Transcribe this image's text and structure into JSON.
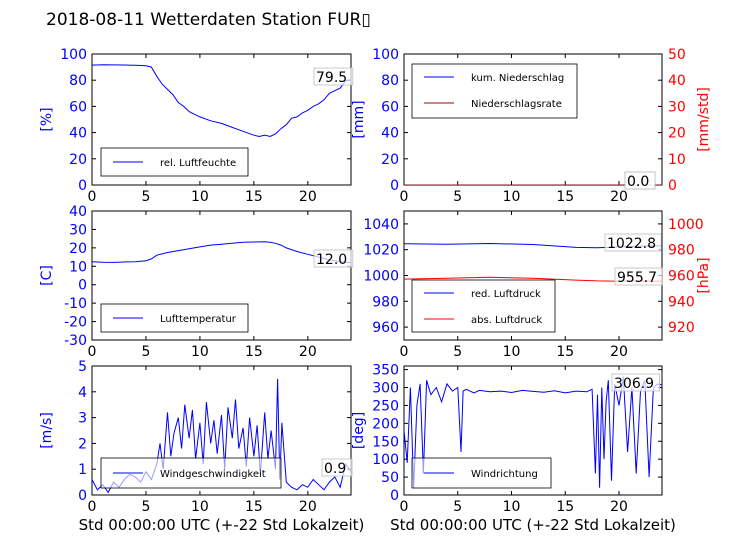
{
  "title": "2018-08-11 Wetterdaten Station FUR▯",
  "colors": {
    "blue": "#0000ff",
    "red": "#ff0000",
    "darkred": "#aa0000",
    "text": "#000000"
  },
  "chart_data": [
    {
      "id": "humidity",
      "type": "line",
      "xlabel": "",
      "ylabel": "[%]",
      "xlim": [
        0,
        24
      ],
      "ylim": [
        0,
        100
      ],
      "xticks": [
        0,
        5,
        10,
        15,
        20
      ],
      "yticks": [
        0,
        20,
        40,
        60,
        80,
        100
      ],
      "legend": {
        "placement": "lower-left",
        "entries": [
          "rel. Luftfeuchte"
        ]
      },
      "annotation": "79.5",
      "series": [
        {
          "name": "rel. Luftfeuchte",
          "color": "blue",
          "x": [
            0,
            1,
            2,
            3,
            4,
            5,
            5.5,
            6,
            6.5,
            7,
            7.5,
            8,
            8.5,
            9,
            9.5,
            10,
            11,
            12,
            13,
            14,
            15,
            15.5,
            16,
            16.5,
            17,
            17.5,
            18,
            18.5,
            19,
            19.5,
            20,
            20.5,
            21,
            21.5,
            22,
            22.5,
            23,
            23.5,
            24
          ],
          "y": [
            91.5,
            91.8,
            91.7,
            91.6,
            91.4,
            91,
            90,
            83,
            77,
            73,
            69,
            63,
            60,
            56,
            54,
            52,
            49,
            47,
            44,
            41,
            38,
            37,
            38,
            37,
            39,
            43,
            46,
            51,
            52,
            55,
            57,
            60,
            62,
            65,
            70,
            72,
            74,
            79.5,
            80
          ]
        }
      ]
    },
    {
      "id": "precipitation",
      "type": "line",
      "xlabel": "",
      "ylabel": "[mm]",
      "y2label": "[mm/std]",
      "xlim": [
        0,
        24
      ],
      "ylim": [
        0,
        100
      ],
      "y2lim": [
        0,
        50
      ],
      "xticks": [
        0,
        5,
        10,
        15,
        20
      ],
      "yticks": [
        0,
        20,
        40,
        60,
        80,
        100
      ],
      "y2ticks": [
        0,
        10,
        20,
        30,
        40,
        50
      ],
      "legend": {
        "placement": "upper-left",
        "entries": [
          "kum. Niederschlag",
          "Niederschlagsrate"
        ]
      },
      "annotations": [
        "0.0",
        "0.0"
      ],
      "series": [
        {
          "name": "kum. Niederschlag",
          "color": "blue",
          "axis": "left",
          "x": [
            0,
            24
          ],
          "y": [
            0,
            0
          ]
        },
        {
          "name": "Niederschlagsrate",
          "color": "darkred",
          "axis": "right",
          "x": [
            0,
            24
          ],
          "y": [
            0,
            0
          ]
        }
      ]
    },
    {
      "id": "temperature",
      "type": "line",
      "xlabel": "",
      "ylabel": "[C]",
      "xlim": [
        0,
        24
      ],
      "ylim": [
        -30,
        40
      ],
      "xticks": [
        0,
        5,
        10,
        15,
        20
      ],
      "yticks": [
        -30,
        -20,
        -10,
        0,
        10,
        20,
        30,
        40
      ],
      "legend": {
        "placement": "lower-left",
        "entries": [
          "Lufttemperatur"
        ]
      },
      "annotation": "12.0",
      "series": [
        {
          "name": "Lufttemperatur",
          "color": "blue",
          "x": [
            0,
            1,
            2,
            3,
            4,
            5,
            5.5,
            6,
            7,
            8,
            9,
            10,
            11,
            12,
            13,
            14,
            15,
            16,
            16.5,
            17,
            17.5,
            18,
            19,
            20,
            21,
            22,
            23,
            24
          ],
          "y": [
            12.5,
            12.2,
            12.1,
            12.3,
            12.5,
            13,
            14,
            16,
            17.5,
            18.5,
            19.5,
            20.5,
            21.5,
            22,
            22.5,
            23,
            23.2,
            23.3,
            23,
            22.5,
            21.5,
            20,
            18,
            16.5,
            15,
            13.5,
            12.5,
            12
          ]
        }
      ]
    },
    {
      "id": "pressure",
      "type": "line",
      "xlabel": "",
      "ylabel": "",
      "y2label": "[hPa]",
      "xlim": [
        0,
        24
      ],
      "ylim": [
        950,
        1050
      ],
      "y2lim": [
        910,
        1010
      ],
      "xticks": [
        0,
        5,
        10,
        15,
        20
      ],
      "yticks": [
        960,
        980,
        1000,
        1020,
        1040
      ],
      "y2ticks": [
        920,
        940,
        960,
        980,
        1000
      ],
      "legend": {
        "placement": "lower-left",
        "entries": [
          "red. Luftdruck",
          "abs. Luftdruck"
        ]
      },
      "annotations": [
        "1022.8",
        "955.7"
      ],
      "series": [
        {
          "name": "red. Luftdruck",
          "color": "blue",
          "axis": "left",
          "x": [
            0,
            4,
            8,
            12,
            16,
            18,
            20,
            22,
            24
          ],
          "y": [
            1024.6,
            1024.2,
            1024.8,
            1024.0,
            1021.8,
            1021.5,
            1022.2,
            1022.8,
            1023.0
          ]
        },
        {
          "name": "abs. Luftdruck",
          "color": "red",
          "axis": "right",
          "x": [
            0,
            4,
            8,
            12,
            16,
            18,
            20,
            22,
            24
          ],
          "y": [
            957.2,
            957.8,
            958.6,
            957.8,
            956.4,
            955.8,
            955.6,
            955.7,
            955.6
          ]
        }
      ]
    },
    {
      "id": "windspeed",
      "type": "line",
      "xlabel": "Std 00:00:00 UTC (+-22 Std Lokalzeit)",
      "ylabel": "[m/s]",
      "xlim": [
        0,
        24
      ],
      "ylim": [
        0,
        5
      ],
      "xticks": [
        0,
        5,
        10,
        15,
        20
      ],
      "yticks": [
        0,
        1,
        2,
        3,
        4,
        5
      ],
      "legend": {
        "placement": "lower-left",
        "entries": [
          "Windgeschwindigkeit"
        ]
      },
      "annotation": "0.9",
      "series": [
        {
          "name": "Windgeschwindigkeit",
          "color": "blue",
          "x": [
            0,
            0.5,
            1,
            1.5,
            2,
            2.5,
            3,
            3.5,
            4,
            4.5,
            5,
            5.5,
            6,
            6.3,
            6.6,
            7,
            7.3,
            7.6,
            8,
            8.3,
            8.6,
            9,
            9.3,
            9.6,
            10,
            10.3,
            10.6,
            11,
            11.3,
            11.6,
            12,
            12.3,
            12.6,
            13,
            13.3,
            13.6,
            14,
            14.3,
            14.6,
            15,
            15.3,
            15.6,
            16,
            16.3,
            16.6,
            17,
            17.2,
            17.4,
            17.6,
            18,
            18.5,
            19,
            19.5,
            20,
            20.5,
            21,
            21.5,
            22,
            22.5,
            23,
            23.5,
            24
          ],
          "y": [
            0.6,
            0.2,
            0.4,
            0.1,
            0.5,
            0.3,
            0.6,
            0.8,
            0.7,
            0.5,
            0.9,
            0.6,
            1.2,
            2.0,
            1.0,
            3.2,
            1.5,
            2.4,
            3.0,
            1.8,
            3.5,
            2.2,
            3.3,
            1.4,
            2.8,
            1.2,
            3.6,
            2.0,
            2.9,
            1.6,
            3.1,
            1.0,
            3.4,
            2.2,
            3.7,
            1.8,
            2.6,
            1.1,
            3.0,
            1.5,
            2.7,
            0.8,
            3.2,
            1.4,
            2.5,
            1.0,
            4.5,
            0.6,
            2.8,
            0.5,
            0.3,
            0.2,
            0.4,
            0.3,
            0.6,
            0.4,
            0.2,
            0.5,
            0.7,
            0.3,
            1.2,
            0.9
          ]
        }
      ]
    },
    {
      "id": "winddirection",
      "type": "line",
      "xlabel": "Std 00:00:00 UTC (+-22 Std Lokalzeit)",
      "ylabel": "[deg]",
      "xlim": [
        0,
        24
      ],
      "ylim": [
        0,
        360
      ],
      "xticks": [
        0,
        5,
        10,
        15,
        20
      ],
      "yticks": [
        0,
        50,
        100,
        150,
        200,
        250,
        300,
        350
      ],
      "legend": {
        "placement": "lower-left",
        "entries": [
          "Windrichtung"
        ]
      },
      "annotation": "306.9",
      "series": [
        {
          "name": "Windrichtung",
          "color": "blue",
          "x": [
            0,
            0.3,
            0.6,
            0.9,
            1.2,
            1.5,
            1.8,
            2.1,
            2.5,
            3,
            3.5,
            4,
            4.5,
            5,
            5.3,
            5.5,
            5.8,
            6.5,
            7,
            8,
            9,
            10,
            11,
            12,
            13,
            14,
            15,
            16,
            17,
            17.5,
            17.8,
            18,
            18.2,
            18.4,
            18.6,
            18.8,
            19,
            19.3,
            19.6,
            20,
            20.4,
            20.8,
            21.2,
            21.6,
            22,
            22.4,
            22.8,
            23.2,
            23.6,
            24
          ],
          "y": [
            180,
            90,
            300,
            20,
            250,
            310,
            60,
            320,
            280,
            300,
            260,
            310,
            290,
            300,
            120,
            290,
            295,
            285,
            292,
            288,
            290,
            286,
            292,
            289,
            287,
            291,
            285,
            290,
            288,
            295,
            60,
            280,
            20,
            300,
            100,
            260,
            320,
            40,
            310,
            250,
            330,
            120,
            300,
            60,
            290,
            320,
            50,
            300,
            310,
            306.9
          ]
        }
      ]
    }
  ]
}
